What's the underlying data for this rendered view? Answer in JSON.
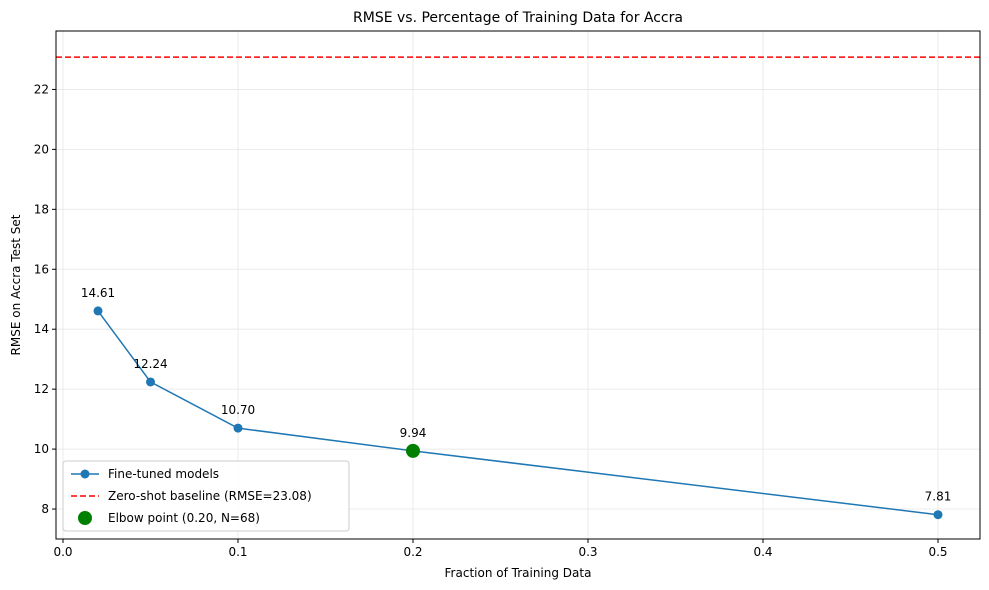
{
  "chart_data": {
    "type": "line",
    "title": "RMSE vs. Percentage of Training Data for Accra",
    "xlabel": "Fraction of Training Data",
    "ylabel": "RMSE on Accra Test Set",
    "xlim": [
      -0.004,
      0.524
    ],
    "ylim": [
      7.0,
      23.95
    ],
    "x_ticks": [
      0.0,
      0.1,
      0.2,
      0.3,
      0.4,
      0.5
    ],
    "x_tick_labels": [
      "0.0",
      "0.1",
      "0.2",
      "0.3",
      "0.4",
      "0.5"
    ],
    "y_ticks": [
      8,
      10,
      12,
      14,
      16,
      18,
      20,
      22
    ],
    "y_tick_labels": [
      "8",
      "10",
      "12",
      "14",
      "16",
      "18",
      "20",
      "22"
    ],
    "grid": true,
    "legend_position": "lower-left",
    "series": [
      {
        "name": "Fine-tuned models",
        "style": "line-with-markers",
        "color": "#1f77b4",
        "x": [
          0.02,
          0.05,
          0.1,
          0.2,
          0.5
        ],
        "y": [
          14.61,
          12.24,
          10.7,
          9.94,
          7.81
        ],
        "point_labels": [
          "14.61",
          "12.24",
          "10.70",
          "9.94",
          "7.81"
        ]
      },
      {
        "name": "Zero-shot baseline (RMSE=23.08)",
        "style": "horizontal-dashed",
        "color": "#ff0000",
        "y": 23.08
      },
      {
        "name": "Elbow point (0.20, N=68)",
        "style": "scatter",
        "color": "#008000",
        "x": [
          0.2
        ],
        "y": [
          9.94
        ]
      }
    ]
  }
}
